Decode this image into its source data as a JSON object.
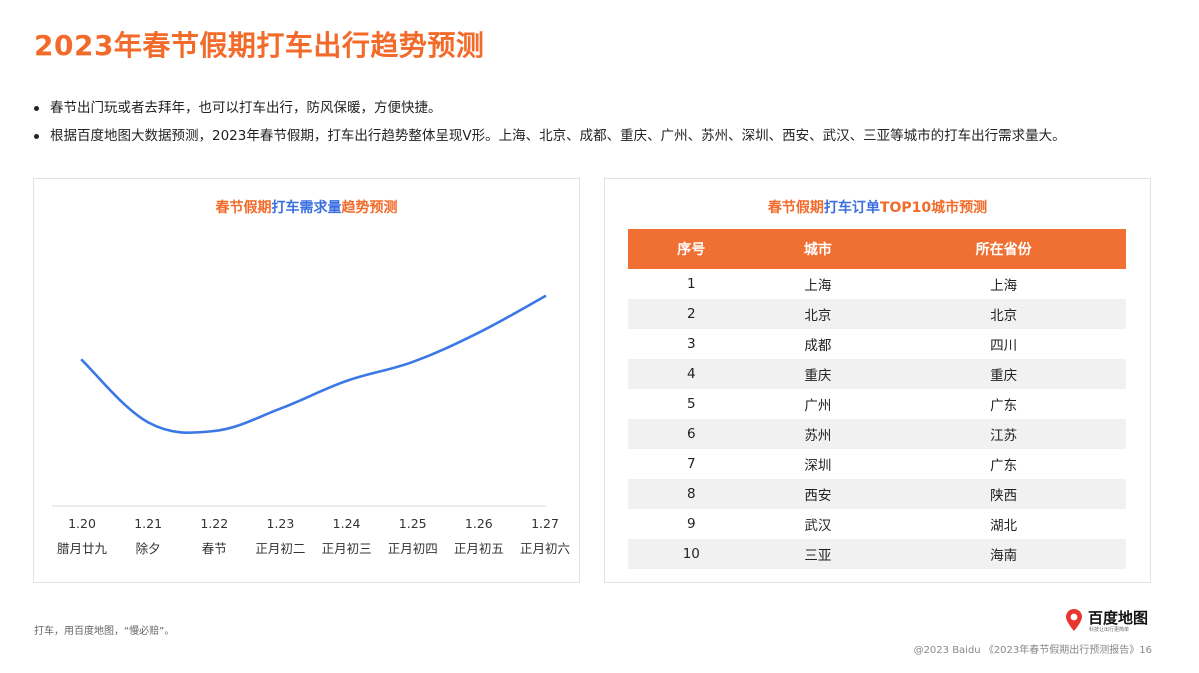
{
  "title": "2023年春节假期打车出行趋势预测",
  "bullets": [
    "春节出门玩或者去拜年，也可以打车出行，防风保暖，方便快捷。",
    "根据百度地图大数据预测，2023年春节假期，打车出行趋势整体呈现V形。上海、北京、成都、重庆、广州、苏州、深圳、西安、武汉、三亚等城市的打车出行需求量大。"
  ],
  "left_panel": {
    "title_parts": [
      "春节假期",
      "打车需求量",
      "趋势预测"
    ]
  },
  "right_panel": {
    "title_parts": [
      "春节假期",
      "打车订单",
      "TOP10城市预测"
    ],
    "headers": [
      "序号",
      "城市",
      "所在省份"
    ],
    "rows": [
      [
        "1",
        "上海",
        "上海"
      ],
      [
        "2",
        "北京",
        "北京"
      ],
      [
        "3",
        "成都",
        "四川"
      ],
      [
        "4",
        "重庆",
        "重庆"
      ],
      [
        "5",
        "广州",
        "广东"
      ],
      [
        "6",
        "苏州",
        "江苏"
      ],
      [
        "7",
        "深圳",
        "广东"
      ],
      [
        "8",
        "西安",
        "陕西"
      ],
      [
        "9",
        "武汉",
        "湖北"
      ],
      [
        "10",
        "三亚",
        "海南"
      ]
    ]
  },
  "chart_data": [
    {
      "type": "line",
      "title": "春节假期打车需求量趋势预测",
      "categories": [
        "1.20",
        "1.21",
        "1.22",
        "1.23",
        "1.24",
        "1.25",
        "1.26",
        "1.27"
      ],
      "sub_categories": [
        "腊月廿九",
        "除夕",
        "春节",
        "正月初二",
        "正月初三",
        "正月初四",
        "正月初五",
        "正月初六"
      ],
      "series": [
        {
          "values": [
            63,
            27,
            22,
            35,
            51,
            62,
            79,
            100
          ],
          "color": "#3a78e6"
        }
      ],
      "ylim": [
        0,
        110
      ],
      "grid": false,
      "y_axis_visible": false
    },
    {
      "type": "table",
      "title": "春节假期打车订单TOP10城市预测",
      "columns": [
        "序号",
        "城市",
        "所在省份"
      ],
      "rows": [
        [
          "1",
          "上海",
          "上海"
        ],
        [
          "2",
          "北京",
          "北京"
        ],
        [
          "3",
          "成都",
          "四川"
        ],
        [
          "4",
          "重庆",
          "重庆"
        ],
        [
          "5",
          "广州",
          "广东"
        ],
        [
          "6",
          "苏州",
          "江苏"
        ],
        [
          "7",
          "深圳",
          "广东"
        ],
        [
          "8",
          "西安",
          "陕西"
        ],
        [
          "9",
          "武汉",
          "湖北"
        ],
        [
          "10",
          "三亚",
          "海南"
        ]
      ]
    }
  ],
  "footnote": "打车，用百度地图，“慢必赔”。",
  "logo": {
    "name": "百度地图",
    "tagline": "科技让出行更简单",
    "pin_color": "#e8352e"
  },
  "copyright": "@2023 Baidu 《2023年春节假期出行预测报告》16",
  "colors": {
    "accent": "#f26b2a",
    "line": "#3a78e6",
    "header_bg": "#f07034",
    "highlight": "#3b6fe0",
    "row_alt": "#f1f1f1"
  }
}
